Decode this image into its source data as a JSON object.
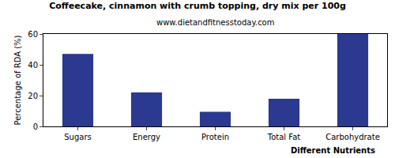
{
  "chart_data": {
    "type": "bar",
    "title": "Coffeecake, cinnamon with crumb topping, dry mix per 100g",
    "subtitle": "www.dietandfitnesstoday.com",
    "x_label": "Different Nutrients",
    "y_label": "Percentage of RDA (%)",
    "categories": [
      "Sugars",
      "Energy",
      "Protein",
      "Total Fat",
      "Carbohydrate"
    ],
    "values": [
      47,
      22,
      9.5,
      18,
      60
    ],
    "color": "#2b3990",
    "ylim": [
      0,
      60
    ],
    "yticks": [
      0,
      20,
      40,
      60
    ],
    "grid": false
  }
}
